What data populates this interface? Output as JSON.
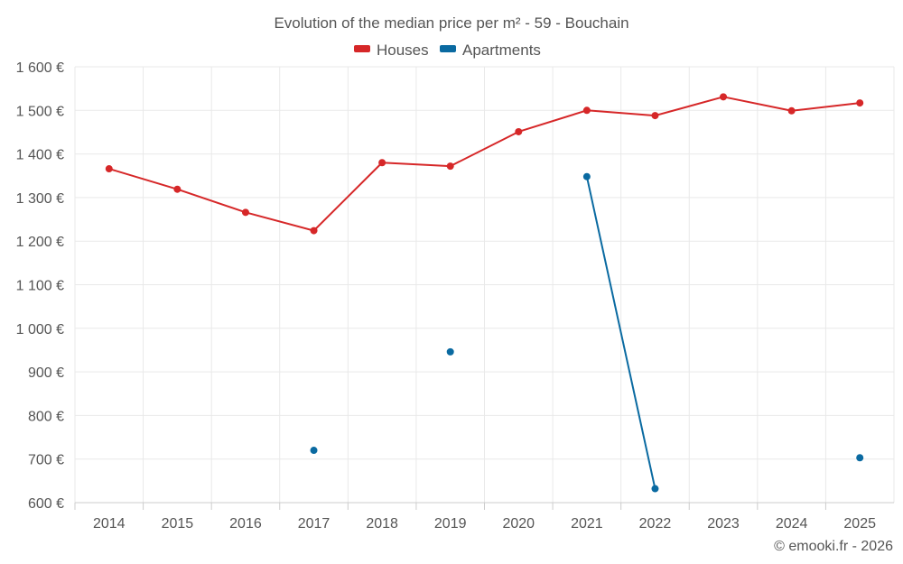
{
  "chart_data": {
    "type": "line",
    "title": "Evolution of the median price per m² - 59 - Bouchain",
    "categories": [
      "2014",
      "2015",
      "2016",
      "2017",
      "2018",
      "2019",
      "2020",
      "2021",
      "2022",
      "2023",
      "2024",
      "2025"
    ],
    "ylim": [
      600,
      1600
    ],
    "yticks": [
      600,
      700,
      800,
      900,
      1000,
      1100,
      1200,
      1300,
      1400,
      1500,
      1600
    ],
    "ytick_labels": [
      "600 €",
      "700 €",
      "800 €",
      "900 €",
      "1 000 €",
      "1 100 €",
      "1 200 €",
      "1 300 €",
      "1 400 €",
      "1 500 €",
      "1 600 €"
    ],
    "grid": true,
    "legend_position": "top-center",
    "series": [
      {
        "name": "Houses",
        "color": "#d62728",
        "values": [
          1366,
          1319,
          1266,
          1224,
          1380,
          1372,
          1451,
          1500,
          1488,
          1531,
          1499,
          1517
        ]
      },
      {
        "name": "Apartments",
        "color": "#0a6aa1",
        "values": [
          null,
          null,
          null,
          720,
          null,
          946,
          null,
          1348,
          632,
          null,
          null,
          703
        ]
      }
    ]
  },
  "credit": "© emooki.fr - 2026"
}
